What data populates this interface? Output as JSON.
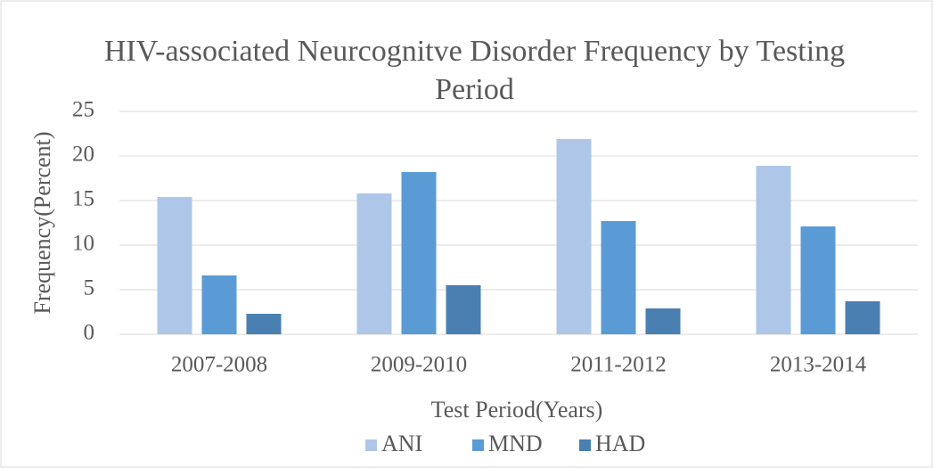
{
  "chart_data": {
    "type": "bar",
    "title": "HIV-associated Neurcognitve Disorder Frequency by Testing Period",
    "x_label": "Test Period(Years)",
    "y_label": "Frequency(Percent)",
    "categories": [
      "2007-2008",
      "2009-2010",
      "2011-2012",
      "2013-2014"
    ],
    "series": [
      {
        "name": "ANI",
        "color": "#aec7e8",
        "values": [
          15.4,
          15.8,
          21.9,
          18.9
        ]
      },
      {
        "name": "MND",
        "color": "#5b9bd5",
        "values": [
          6.6,
          18.2,
          12.7,
          12.1
        ]
      },
      {
        "name": "HAD",
        "color": "#4a7fb1",
        "values": [
          2.3,
          5.5,
          2.9,
          3.7
        ]
      }
    ],
    "ylim": [
      0,
      25
    ],
    "yticks": [
      0,
      5,
      10,
      15,
      20,
      25
    ],
    "grid": true,
    "legend": "bottom"
  }
}
